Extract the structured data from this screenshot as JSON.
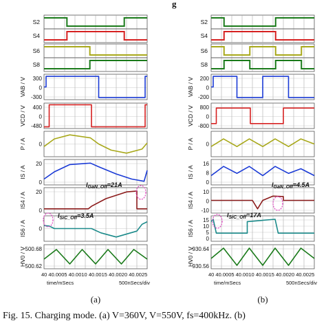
{
  "header": {
    "fragment": "g"
  },
  "caption": "Fig. 15. Charging mode. (a) V",
  "caption_tail": "=360V, V",
  "caption_tail2": "=550V, fs=400kHz. (b)",
  "chart_data": [
    {
      "type": "line",
      "panel_label": "(a)",
      "time_label": "time/mSecs",
      "div_label": "500nSecs/div",
      "x_ticks": [
        "40",
        "40.0005",
        "40.0010",
        "40.0015",
        "40.0020",
        "40.0025"
      ],
      "x_ticks_text": "40    40.0005 40.0010 40.0015 40.0020 40.0025",
      "annotations": [
        {
          "text": "IGaN_Off=21A",
          "display": "I",
          "sub": "GaN_Off",
          "tail": "=21A"
        },
        {
          "text": "ISiC_Off=3.5A",
          "display": "I",
          "sub": "SiC_Off",
          "tail": "=3.5A"
        }
      ],
      "rows": [
        {
          "label": "S2",
          "color": "#1a7a1a",
          "kind": "logic",
          "pattern": [
            1,
            1,
            0,
            0,
            0,
            0,
            0,
            1,
            1
          ]
        },
        {
          "label": "S4",
          "color": "#d62020",
          "kind": "logic",
          "pattern": [
            0,
            0,
            1,
            1,
            1,
            1,
            1,
            0,
            0
          ]
        },
        {
          "label": "S6",
          "color": "#a8a81a",
          "kind": "logic",
          "pattern": [
            1,
            1,
            1,
            1,
            0,
            0,
            0,
            0,
            0
          ]
        },
        {
          "label": "S8",
          "color": "#1a7a1a",
          "kind": "logic",
          "pattern": [
            0,
            0,
            0,
            0,
            1,
            1,
            1,
            1,
            1
          ]
        },
        {
          "label": "VAB / V",
          "color": "#1a3ad6",
          "ticks": [
            "300",
            "0",
            "-300"
          ],
          "ylim": [
            -360,
            360
          ],
          "x": [
            0,
            0.02,
            0.02,
            0.53,
            0.53,
            0.98,
            0.98,
            1
          ],
          "y": [
            0,
            0,
            300,
            300,
            -300,
            -300,
            300,
            300
          ]
        },
        {
          "label": "VCD / V",
          "color": "#d62020",
          "ticks": [
            "400",
            "0",
            "-480"
          ],
          "ylim": [
            -550,
            550
          ],
          "x": [
            0,
            0.05,
            0.05,
            0.46,
            0.46,
            0.98,
            0.98,
            1
          ],
          "y": [
            -480,
            -480,
            480,
            480,
            -480,
            -480,
            480,
            480
          ]
        },
        {
          "label": "P / A",
          "color": "#a8a81a",
          "ticks": [
            "0"
          ],
          "ylim": [
            -25,
            25
          ],
          "x": [
            0,
            0.1,
            0.25,
            0.45,
            0.53,
            0.65,
            0.8,
            0.95,
            1
          ],
          "y": [
            -5,
            10,
            18,
            12,
            0,
            -12,
            -18,
            -10,
            2
          ]
        },
        {
          "label": "IS / A",
          "color": "#1a3ad6",
          "ticks": [
            "20",
            "0"
          ],
          "ylim": [
            -10,
            25
          ],
          "x": [
            0,
            0.1,
            0.25,
            0.45,
            0.53,
            0.7,
            0.85,
            0.97,
            1
          ],
          "y": [
            -2,
            8,
            18,
            20,
            15,
            5,
            -2,
            -5,
            10
          ]
        },
        {
          "label": "IS4 / A",
          "color": "#8b1a1a",
          "ticks": [
            "20",
            "0"
          ],
          "ylim": [
            -5,
            25
          ],
          "x": [
            0,
            0.43,
            0.46,
            0.6,
            0.8,
            0.9,
            0.9,
            1
          ],
          "y": [
            0,
            0,
            3,
            12,
            20,
            21,
            0,
            0
          ]
        },
        {
          "label": "IS6 / A",
          "color": "#1a8a8a",
          "ticks": [
            "0"
          ],
          "ylim": [
            -15,
            15
          ],
          "x": [
            0,
            0.05,
            0.1,
            0.2,
            0.46,
            0.55,
            0.7,
            0.9,
            0.95,
            1
          ],
          "y": [
            3.5,
            3,
            0,
            0,
            0,
            -5,
            -10,
            -3,
            5,
            8
          ]
        },
        {
          "label": "HV0 / V",
          "color": "#1a7a1a",
          "ticks": [
            "500.68",
            "500.62"
          ],
          "ylim": [
            500.6,
            500.7
          ],
          "x": [
            0,
            0.12,
            0.25,
            0.37,
            0.5,
            0.62,
            0.75,
            0.87,
            1
          ],
          "y": [
            500.64,
            500.68,
            500.62,
            500.68,
            500.62,
            500.68,
            500.62,
            500.68,
            500.64
          ]
        }
      ]
    },
    {
      "type": "line",
      "panel_label": "(b)",
      "time_label": "time/mSecs",
      "div_label": "500nSecs/div",
      "x_ticks": [
        "40",
        "40.0005",
        "40.0010",
        "40.0015",
        "40.0020",
        "40.0025"
      ],
      "x_ticks_text": "40    40.0005 40.0010 40.0015 40.0020 40.0025",
      "annotations": [
        {
          "text": "IGaN_Off=4.5A",
          "display": "I",
          "sub": "GaN_Off",
          "tail": "=4.5A"
        },
        {
          "text": "ISiC_Off=17A",
          "display": "I",
          "sub": "SiC_Off",
          "tail": "=17A"
        }
      ],
      "rows": [
        {
          "label": "S2",
          "color": "#1a7a1a",
          "kind": "logic",
          "pattern": [
            1,
            0,
            0,
            0,
            0,
            1,
            1,
            1
          ]
        },
        {
          "label": "S4",
          "color": "#d62020",
          "kind": "logic",
          "pattern": [
            0,
            1,
            1,
            1,
            1,
            0,
            0,
            0
          ]
        },
        {
          "label": "S6",
          "color": "#a8a81a",
          "kind": "logic",
          "pattern": [
            1,
            0,
            0,
            1,
            1,
            0,
            0,
            1
          ]
        },
        {
          "label": "S8",
          "color": "#1a7a1a",
          "kind": "logic",
          "pattern": [
            0,
            1,
            1,
            0,
            0,
            1,
            1,
            0
          ]
        },
        {
          "label": "VAB / V",
          "color": "#1a3ad6",
          "ticks": [
            "200",
            "0",
            "-200"
          ],
          "ylim": [
            -360,
            360
          ],
          "x": [
            0,
            0.02,
            0.02,
            0.25,
            0.25,
            0.5,
            0.5,
            0.75,
            0.75,
            1
          ],
          "y": [
            0,
            0,
            300,
            300,
            -300,
            -300,
            300,
            300,
            -300,
            -300
          ]
        },
        {
          "label": "VCD / V",
          "color": "#d62020",
          "ticks": [
            "800",
            "0",
            "-800"
          ],
          "ylim": [
            -900,
            900
          ],
          "x": [
            0,
            0.05,
            0.05,
            0.38,
            0.38,
            0.7,
            0.7,
            1
          ],
          "y": [
            -550,
            -550,
            550,
            550,
            -550,
            -550,
            550,
            550
          ]
        },
        {
          "label": "P / A",
          "color": "#a8a81a",
          "ticks": [
            "0"
          ],
          "ylim": [
            -25,
            25
          ],
          "x": [
            0,
            0.12,
            0.25,
            0.37,
            0.5,
            0.62,
            0.75,
            0.87,
            1
          ],
          "y": [
            -5,
            10,
            -5,
            10,
            -5,
            10,
            -5,
            10,
            0
          ]
        },
        {
          "label": "IS / A",
          "color": "#1a3ad6",
          "ticks": [
            "16",
            "8",
            "0"
          ],
          "ylim": [
            -2,
            20
          ],
          "x": [
            0,
            0.12,
            0.25,
            0.37,
            0.5,
            0.62,
            0.75,
            0.87,
            1
          ],
          "y": [
            6,
            14,
            8,
            14,
            6,
            14,
            8,
            12,
            6
          ]
        },
        {
          "label": "IS4 / A",
          "color": "#8b1a1a",
          "ticks": [
            "10",
            "0",
            "-10"
          ],
          "ylim": [
            -15,
            15
          ],
          "x": [
            0,
            0.4,
            0.45,
            0.5,
            0.6,
            0.7,
            0.7,
            1
          ],
          "y": [
            0,
            0,
            -10,
            0,
            5,
            4.5,
            0,
            0
          ]
        },
        {
          "label": "IS6 / A",
          "color": "#1a8a8a",
          "ticks": [
            "15",
            "10",
            "5",
            "0"
          ],
          "ylim": [
            -2,
            20
          ],
          "x": [
            0,
            0.02,
            0.05,
            0.1,
            0.35,
            0.35,
            0.62,
            0.65,
            0.7,
            1
          ],
          "y": [
            15,
            17,
            5,
            5,
            5,
            15,
            17,
            5,
            5,
            5
          ]
        },
        {
          "label": "HV0 / V",
          "color": "#1a7a1a",
          "ticks": [
            "930.64",
            "930.56"
          ],
          "ylim": [
            930.54,
            930.68
          ],
          "x": [
            0,
            0.12,
            0.25,
            0.37,
            0.5,
            0.62,
            0.75,
            0.87,
            1
          ],
          "y": [
            930.6,
            930.66,
            930.56,
            930.66,
            930.56,
            930.66,
            930.56,
            930.66,
            930.6
          ]
        }
      ]
    }
  ]
}
